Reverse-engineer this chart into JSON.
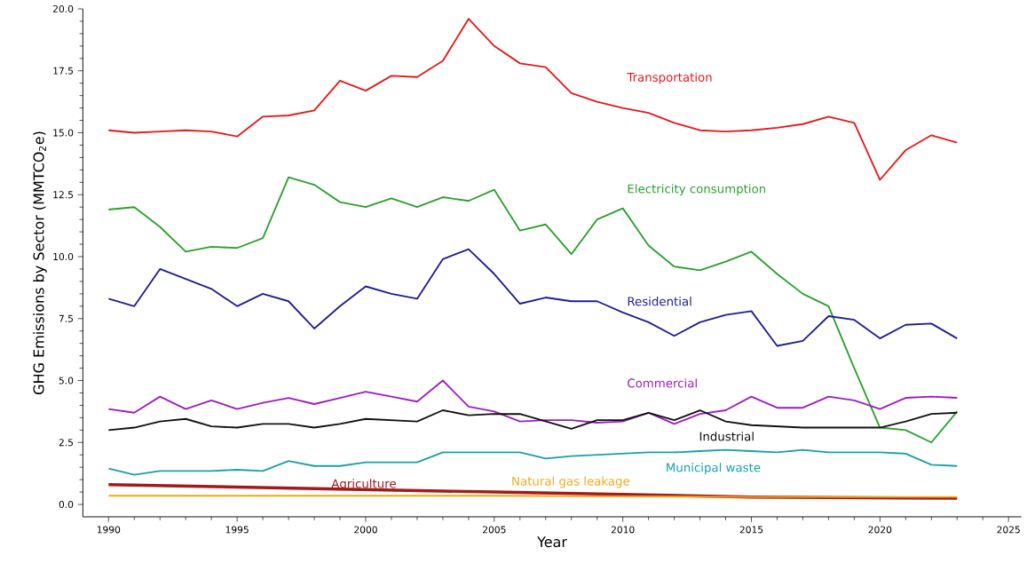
{
  "chart_data": {
    "type": "line",
    "xlabel": "Year",
    "ylabel": "GHG Emissions by Sector (MMTCO$_{2}$e)",
    "x": [
      1990,
      1991,
      1992,
      1993,
      1994,
      1995,
      1996,
      1997,
      1998,
      1999,
      2000,
      2001,
      2002,
      2003,
      2004,
      2005,
      2006,
      2007,
      2008,
      2009,
      2010,
      2011,
      2012,
      2013,
      2014,
      2015,
      2016,
      2017,
      2018,
      2019,
      2020,
      2021,
      2022,
      2023
    ],
    "series": [
      {
        "name": "Transportation",
        "color": "#e31a1c",
        "values": [
          15.1,
          15.0,
          15.05,
          15.1,
          15.05,
          14.85,
          15.65,
          15.7,
          15.9,
          17.1,
          16.7,
          17.3,
          17.25,
          17.9,
          19.6,
          18.5,
          17.8,
          17.65,
          16.6,
          16.25,
          16.0,
          15.8,
          15.4,
          15.1,
          15.05,
          15.1,
          15.2,
          15.35,
          15.65,
          15.4,
          13.1,
          14.3,
          14.9,
          14.6
        ]
      },
      {
        "name": "Electricity consumption",
        "color": "#2ca02c",
        "values": [
          11.9,
          12.0,
          11.2,
          10.2,
          10.4,
          10.35,
          10.75,
          13.2,
          12.9,
          12.2,
          12.0,
          12.35,
          12.0,
          12.4,
          12.25,
          12.7,
          11.05,
          11.3,
          10.1,
          11.5,
          11.95,
          10.45,
          9.6,
          9.45,
          9.8,
          10.2,
          9.3,
          8.5,
          8.0,
          5.5,
          3.1,
          3.0,
          2.5,
          3.75
        ]
      },
      {
        "name": "Residential",
        "color": "#1f1f8f",
        "values": [
          8.3,
          8.0,
          9.5,
          9.1,
          8.7,
          8.0,
          8.5,
          8.2,
          7.1,
          8.0,
          8.8,
          8.5,
          8.3,
          9.9,
          10.3,
          9.3,
          8.1,
          8.35,
          8.2,
          8.2,
          7.75,
          7.35,
          6.8,
          7.35,
          7.65,
          7.8,
          6.4,
          6.6,
          7.6,
          7.45,
          6.7,
          7.25,
          7.3,
          6.7
        ]
      },
      {
        "name": "Commercial",
        "color": "#9b1fbf",
        "values": [
          3.85,
          3.7,
          4.35,
          3.85,
          4.2,
          3.85,
          4.1,
          4.3,
          4.05,
          4.3,
          4.55,
          4.35,
          4.15,
          5.0,
          3.95,
          3.75,
          3.35,
          3.4,
          3.4,
          3.3,
          3.35,
          3.7,
          3.25,
          3.65,
          3.8,
          4.35,
          3.9,
          3.9,
          4.35,
          4.2,
          3.85,
          4.3,
          4.35,
          4.3
        ]
      },
      {
        "name": "Industrial",
        "color": "#111111",
        "values": [
          3.0,
          3.1,
          3.35,
          3.45,
          3.15,
          3.1,
          3.25,
          3.25,
          3.1,
          3.25,
          3.45,
          3.4,
          3.35,
          3.8,
          3.6,
          3.65,
          3.65,
          3.35,
          3.05,
          3.4,
          3.4,
          3.7,
          3.4,
          3.8,
          3.35,
          3.2,
          3.15,
          3.1,
          3.1,
          3.1,
          3.1,
          3.35,
          3.65,
          3.7
        ]
      },
      {
        "name": "Municipal waste",
        "color": "#17a0a8",
        "values": [
          1.45,
          1.2,
          1.35,
          1.35,
          1.35,
          1.4,
          1.35,
          1.75,
          1.55,
          1.55,
          1.7,
          1.7,
          1.7,
          2.1,
          2.1,
          2.1,
          2.1,
          1.85,
          1.95,
          2.0,
          2.05,
          2.1,
          2.1,
          2.15,
          2.2,
          2.15,
          2.1,
          2.2,
          2.1,
          2.1,
          2.1,
          2.05,
          1.6,
          1.55
        ]
      },
      {
        "name": "Agriculture",
        "color": "#a31a1a",
        "x": [
          1990,
          2005,
          2015,
          2023
        ],
        "values": [
          0.8,
          0.5,
          0.3,
          0.25
        ]
      },
      {
        "name": "Natural gas leakage",
        "color": "#f0a81a",
        "x": [
          1990,
          2005,
          2015,
          2023
        ],
        "values": [
          0.35,
          0.35,
          0.3,
          0.3
        ]
      }
    ],
    "xlim": [
      1989,
      2025.5
    ],
    "ylim": [
      -0.5,
      20
    ],
    "xticks": [
      1990,
      1995,
      2000,
      2005,
      2010,
      2015,
      2020,
      2025
    ],
    "yticks": [
      {
        "value": 0,
        "label": "0.0"
      },
      {
        "value": 2.5,
        "label": "2.5"
      },
      {
        "value": 5,
        "label": "5.0"
      },
      {
        "value": 7.5,
        "label": "7.5"
      },
      {
        "value": 10,
        "label": "10.0"
      },
      {
        "value": 12.5,
        "label": "12.5"
      },
      {
        "value": 15,
        "label": "15.0"
      },
      {
        "value": 17.5,
        "label": "17.5"
      },
      {
        "value": 20,
        "label": "20.0"
      }
    ],
    "grid": false,
    "legend": false,
    "marker": "none",
    "line_style": "solid"
  }
}
